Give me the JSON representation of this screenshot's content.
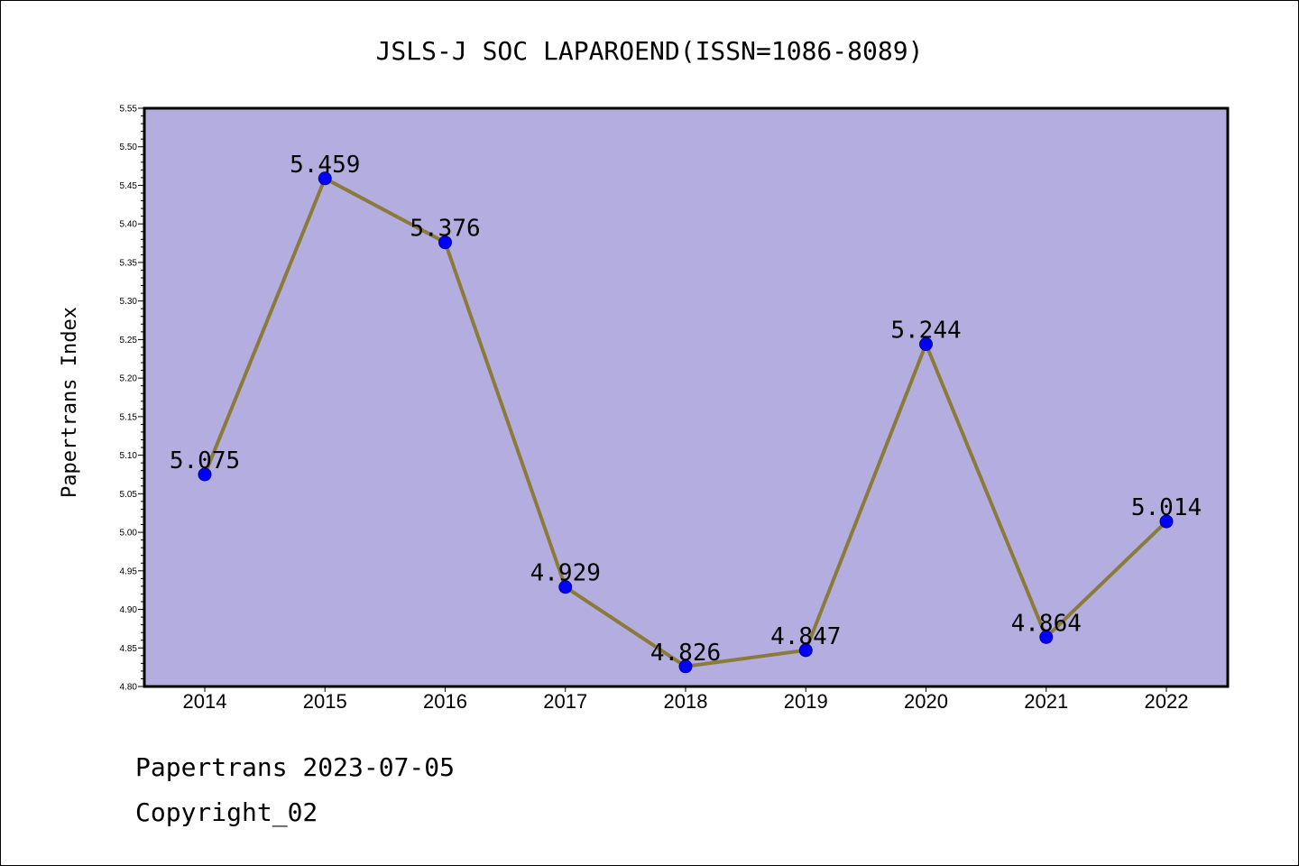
{
  "chart_data": {
    "type": "line",
    "title": "JSLS-J SOC LAPAROEND(ISSN=1086-8089)",
    "xlabel": "",
    "ylabel": "Papertrans Index",
    "categories": [
      "2014",
      "2015",
      "2016",
      "2017",
      "2018",
      "2019",
      "2020",
      "2021",
      "2022"
    ],
    "series": [
      {
        "values": [
          5.075,
          5.459,
          5.376,
          4.929,
          4.826,
          4.847,
          5.244,
          4.864,
          5.014
        ]
      }
    ],
    "data_labels": [
      "5.075",
      "5.459",
      "5.376",
      "4.929",
      "4.826",
      "4.847",
      "5.244",
      "4.864",
      "5.014"
    ],
    "ylim": [
      4.8,
      5.55
    ],
    "yticks": [
      "4.80",
      "4.85",
      "4.90",
      "4.95",
      "5.00",
      "5.05",
      "5.10",
      "5.15",
      "5.20",
      "5.25",
      "5.30",
      "5.35",
      "5.40",
      "5.45",
      "5.50",
      "5.55"
    ],
    "grid": false,
    "colors": {
      "plot_background": "#b4aee0",
      "line": "#8b7b3a",
      "marker": "#0000ff"
    }
  },
  "footer": {
    "line1": "Papertrans 2023-07-05",
    "line2": "Copyright_02"
  }
}
